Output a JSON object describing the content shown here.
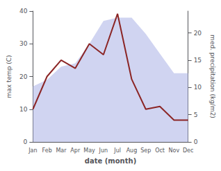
{
  "chart_data": {
    "type": "line",
    "categories": [
      "Jan",
      "Feb",
      "Mar",
      "Apr",
      "May",
      "Jun",
      "Jul",
      "Aug",
      "Sep",
      "Oct",
      "Nov",
      "Dec"
    ],
    "series": [
      {
        "type": "area",
        "color": "#b0b8e8",
        "values": [
          17,
          19,
          23,
          24,
          30,
          37,
          38,
          38,
          33,
          27,
          21,
          21
        ]
      },
      {
        "type": "line",
        "color": "#8b2525",
        "axis": "y2",
        "values": [
          6,
          12,
          15,
          13.5,
          18,
          16,
          23.5,
          11.5,
          6,
          6.5,
          4,
          4
        ]
      }
    ],
    "xlabel": "date (month)",
    "ylabel": "max temp (C)",
    "y2label": "med. precipitation (kg/m2)",
    "ylim": [
      0,
      40
    ],
    "yticks": [
      0,
      10,
      20,
      30,
      40
    ],
    "y2lim": [
      0,
      24
    ],
    "y2ticks": [
      0,
      5,
      10,
      15,
      20
    ],
    "grid": false
  }
}
